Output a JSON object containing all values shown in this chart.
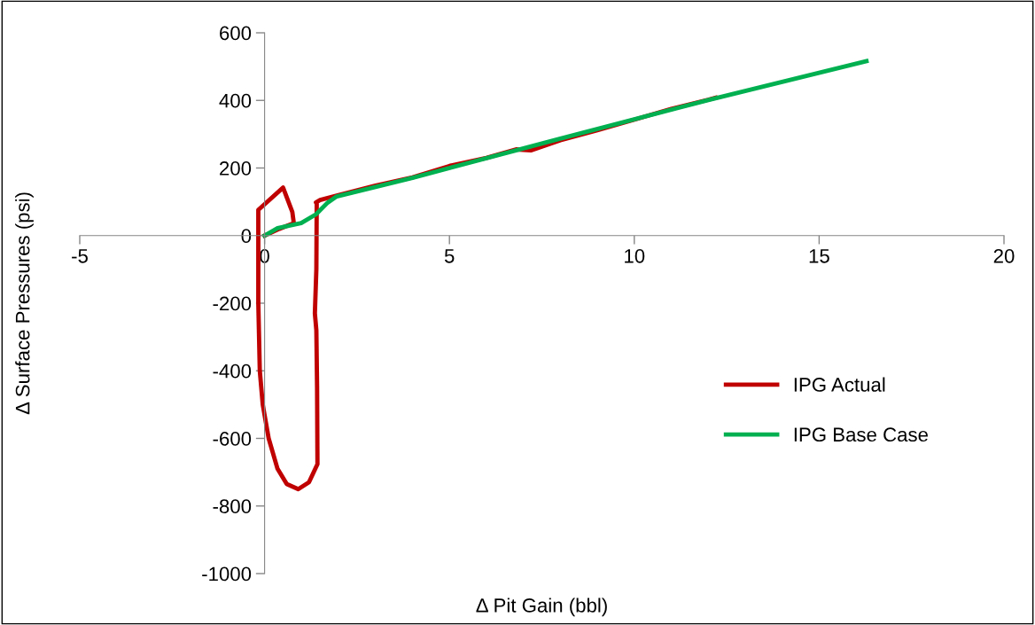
{
  "chart_data": {
    "type": "line",
    "xlabel": "Δ Pit Gain (bbl)",
    "ylabel": "Δ Surface Pressures (psi)",
    "xlim": [
      -5,
      20
    ],
    "xticks": [
      -5,
      0,
      5,
      10,
      15,
      20
    ],
    "ylim": [
      -1000,
      600
    ],
    "yticks": [
      -1000,
      -800,
      -600,
      -400,
      -200,
      0,
      200,
      400,
      600
    ],
    "grid": false,
    "legend": "right",
    "marker": "none",
    "line_style": "solid",
    "series": [
      {
        "name": "IPG Actual",
        "color": "#c00000",
        "x": [
          0,
          0.4,
          0.79,
          0.75,
          0.5,
          -0.17,
          -0.17,
          -0.13,
          -0.05,
          0.11,
          0.35,
          0.6,
          0.91,
          1.2,
          1.43,
          1.42,
          1.4,
          1.36,
          1.4,
          1.41,
          1.39,
          1.5,
          2,
          3,
          4,
          5,
          6,
          6.8,
          7.2,
          8,
          9,
          10,
          11,
          12,
          12.2
        ],
        "values": [
          0,
          20,
          37,
          70,
          142,
          76,
          -200,
          -400,
          -500,
          -600,
          -690,
          -735,
          -750,
          -730,
          -676,
          -450,
          -280,
          -230,
          -100,
          94,
          98,
          105,
          120,
          148,
          172,
          206,
          230,
          255,
          252,
          282,
          312,
          343,
          375,
          402,
          408
        ]
      },
      {
        "name": "IPG Base Case",
        "color": "#00b050",
        "x": [
          0,
          0.35,
          0.99,
          1.39,
          1.71,
          1.95,
          4,
          8,
          12,
          16.28
        ],
        "values": [
          0,
          22,
          37,
          63,
          98,
          116,
          171,
          287,
          401,
          516
        ]
      }
    ]
  }
}
